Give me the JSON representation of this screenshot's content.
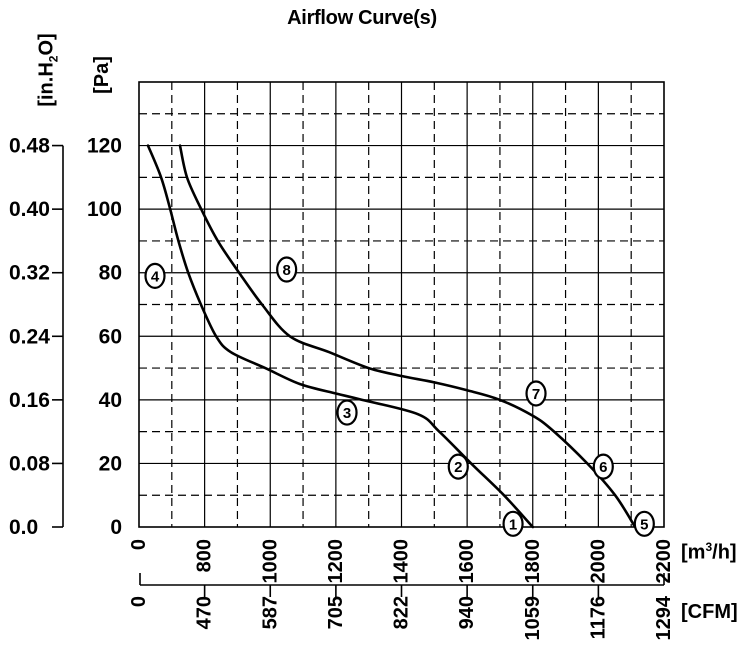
{
  "title": "Airflow Curve(s)",
  "colors": {
    "ink": "#000000",
    "background": "#ffffff"
  },
  "units": {
    "in_h2o": {
      "pre": "[in.H",
      "sub": "2",
      "post": "O]"
    },
    "pa": "[Pa]",
    "m3h": {
      "pre": "[m",
      "sup": "3",
      "post": "/h]"
    },
    "cfm": "[CFM]"
  },
  "chart_data": {
    "type": "line",
    "title": "Airflow Curve(s)",
    "x_axis": {
      "label": "[m3/h]",
      "tick_labels": [
        "0",
        "800",
        "1000",
        "1200",
        "1400",
        "1600",
        "1800",
        "2000",
        "2200"
      ],
      "tick_values": [
        0,
        800,
        1000,
        1200,
        1400,
        1600,
        1800,
        2000,
        2200
      ],
      "note": "segment 0-800 is compressed into a single grid division; 200 units per division afterwards"
    },
    "x_axis_secondary": {
      "label": "[CFM]",
      "tick_labels": [
        "0",
        "470",
        "587",
        "705",
        "822",
        "940",
        "1059",
        "1176",
        "1294"
      ]
    },
    "y_axis": {
      "label": "[Pa]",
      "tick_values": [
        120,
        100,
        80,
        60,
        40,
        20,
        0
      ],
      "range": [
        0,
        140
      ],
      "major_step": 20,
      "minor_step": 10
    },
    "y_axis_secondary": {
      "label": "[in.H2O]",
      "tick_labels": [
        "0.48",
        "0.40",
        "0.32",
        "0.24",
        "0.16",
        "0.08",
        "0.0"
      ]
    },
    "grid": {
      "major": "solid",
      "minor": "dashed",
      "x_minor_per_major": 1
    },
    "series": [
      {
        "name": "curve-1-2-3-4",
        "points": [
          [
            110,
            120
          ],
          [
            270,
            110
          ],
          [
            380,
            100
          ],
          [
            480,
            90
          ],
          [
            600,
            80
          ],
          [
            755,
            70
          ],
          [
            835,
            60
          ],
          [
            880,
            55
          ],
          [
            985,
            50
          ],
          [
            1090,
            45
          ],
          [
            1200,
            42
          ],
          [
            1280,
            40
          ],
          [
            1450,
            35.5
          ],
          [
            1515,
            30
          ],
          [
            1612,
            20
          ],
          [
            1712,
            10
          ],
          [
            1800,
            0
          ]
        ]
      },
      {
        "name": "curve-5-6-7-8",
        "points": [
          [
            500,
            120
          ],
          [
            585,
            110
          ],
          [
            758,
            100
          ],
          [
            840,
            90
          ],
          [
            905,
            80
          ],
          [
            975,
            70
          ],
          [
            1060,
            60
          ],
          [
            1180,
            55
          ],
          [
            1300,
            50
          ],
          [
            1400,
            47.5
          ],
          [
            1500,
            45.5
          ],
          [
            1600,
            43
          ],
          [
            1700,
            40
          ],
          [
            1800,
            35
          ],
          [
            1865,
            30
          ],
          [
            1966,
            20
          ],
          [
            2051,
            10
          ],
          [
            2112,
            0
          ]
        ]
      }
    ],
    "point_labels": [
      {
        "text": "1",
        "x": 1740,
        "pa": 1
      },
      {
        "text": "2",
        "x": 1573,
        "pa": 19
      },
      {
        "text": "3",
        "x": 1234,
        "pa": 36
      },
      {
        "text": "4",
        "x": 195,
        "pa": 79
      },
      {
        "text": "5",
        "x": 2140,
        "pa": 1
      },
      {
        "text": "6",
        "x": 2015,
        "pa": 19
      },
      {
        "text": "7",
        "x": 1810,
        "pa": 42
      },
      {
        "text": "8",
        "x": 1050,
        "pa": 81
      }
    ]
  }
}
